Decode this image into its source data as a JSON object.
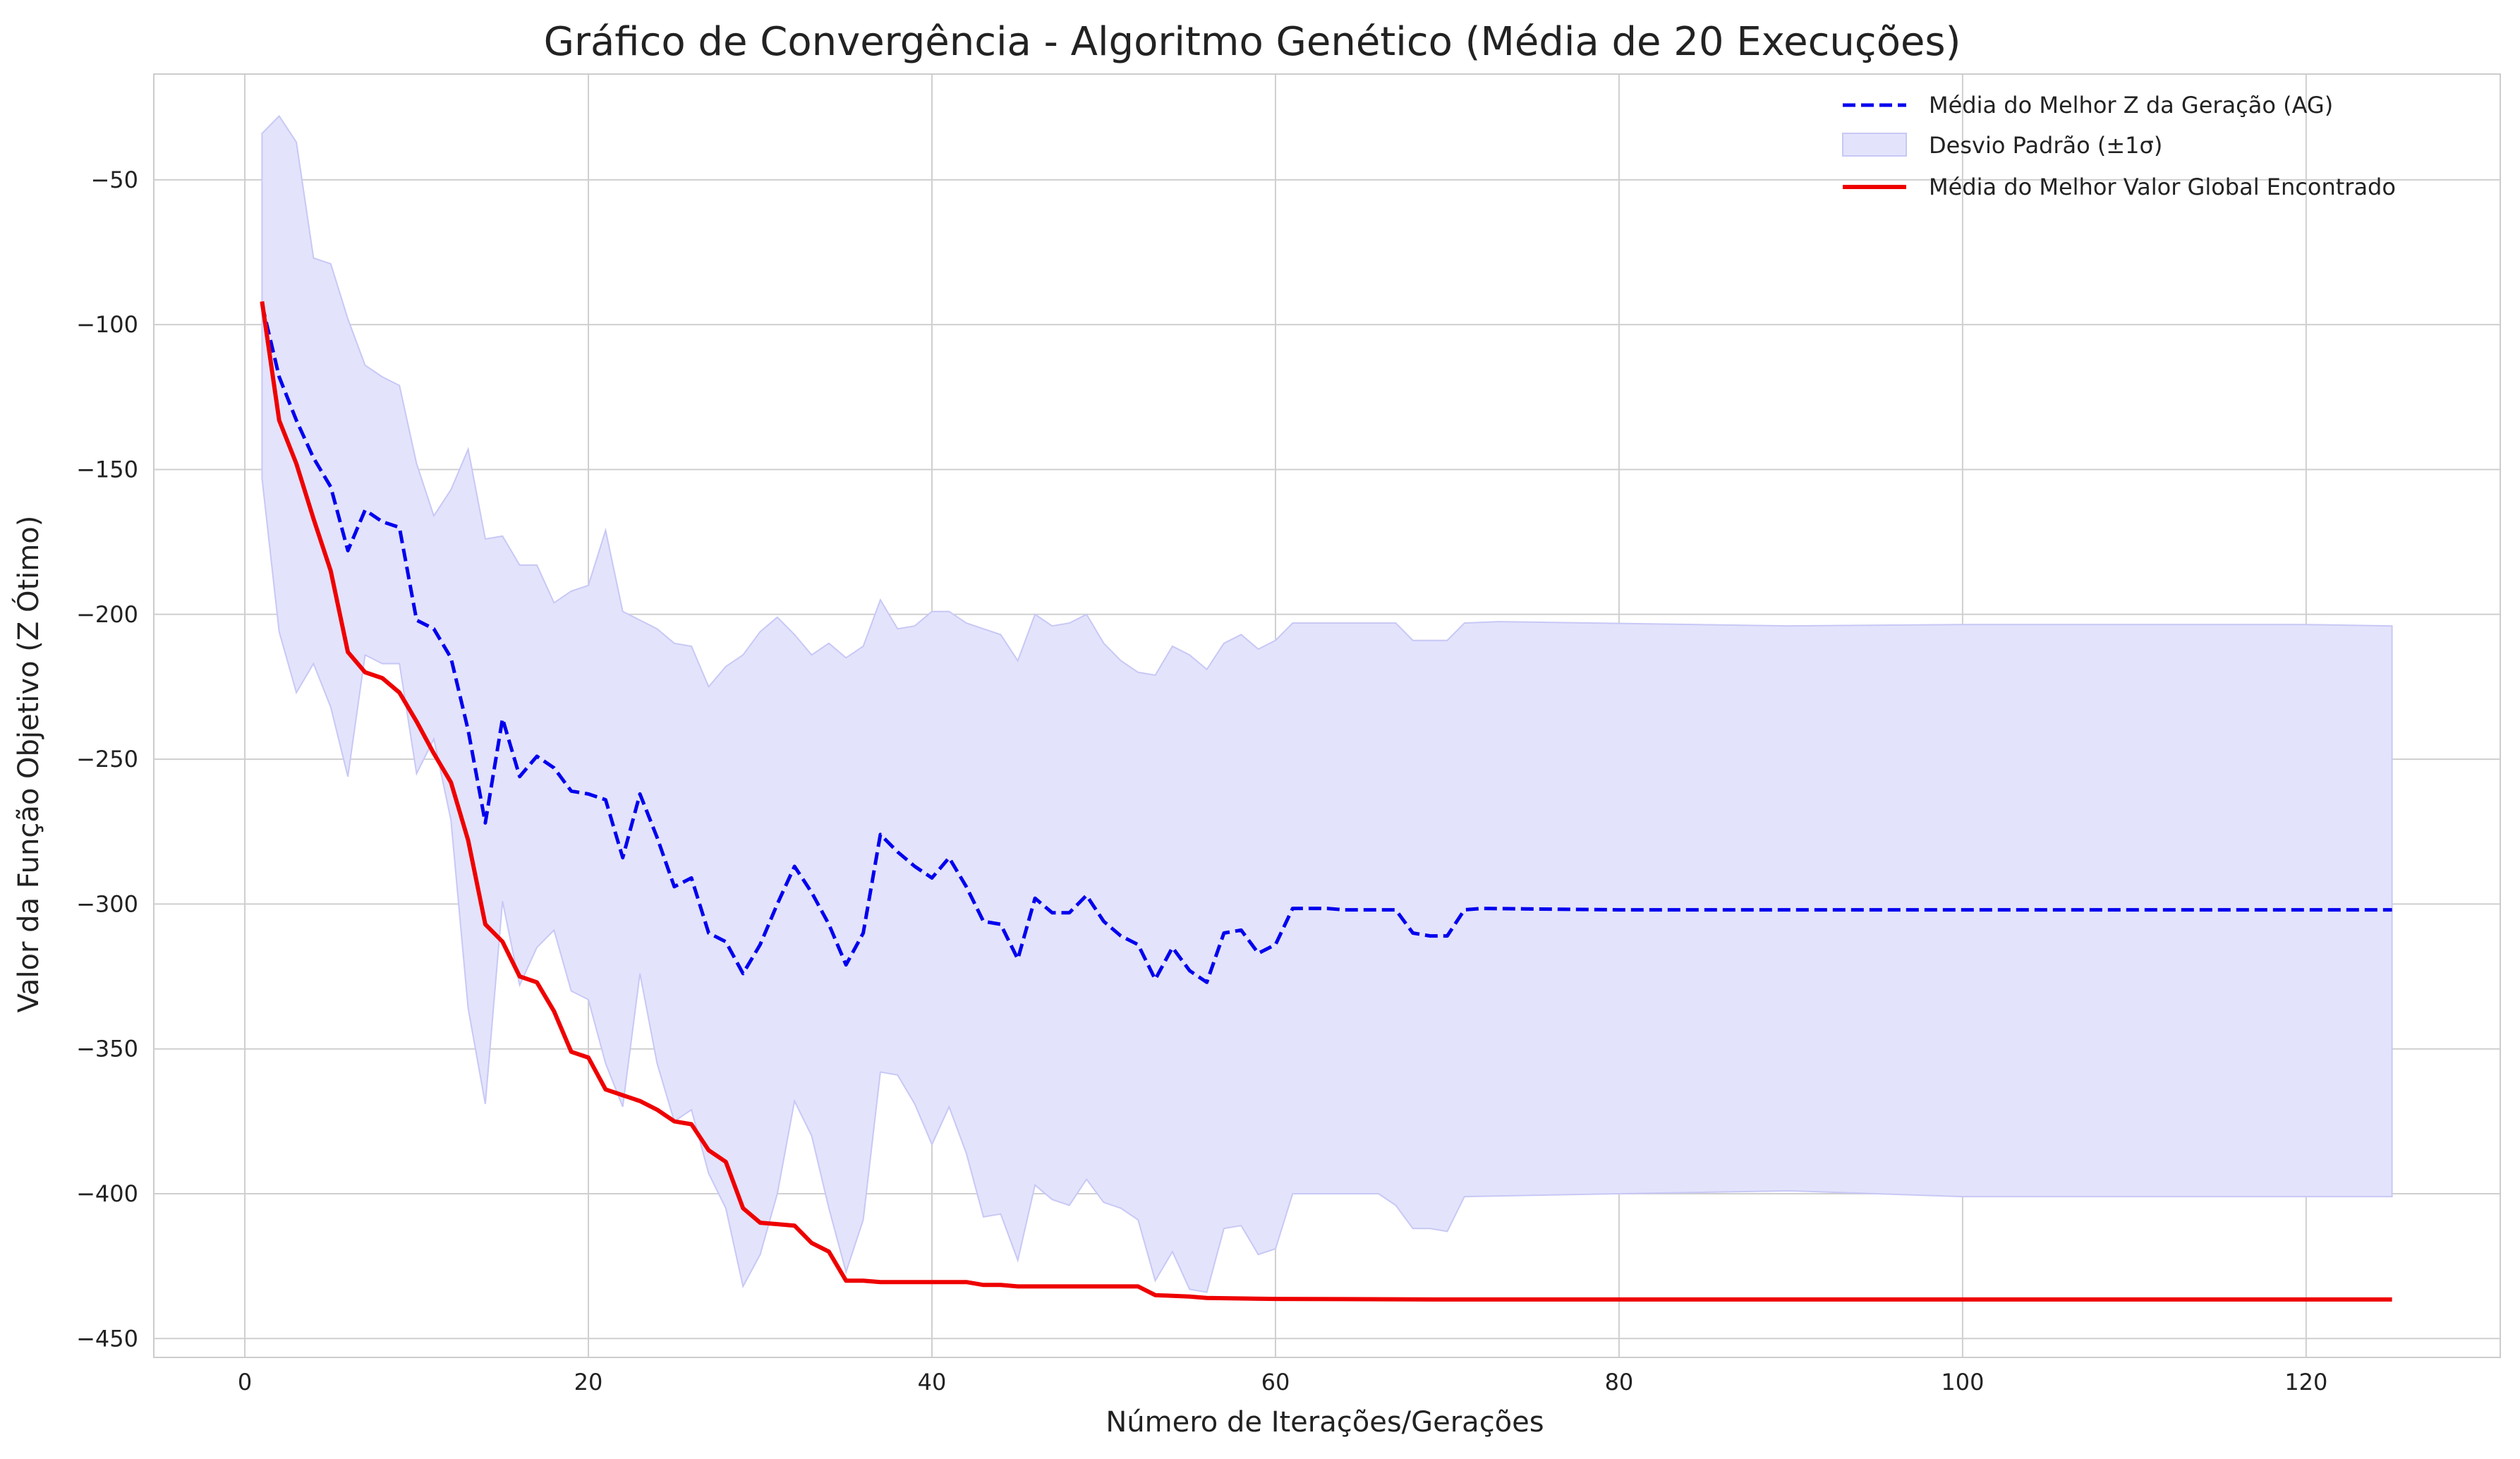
{
  "chart_data": {
    "type": "line",
    "title": "Gráfico de Convergência - Algoritmo Genético (Média de 20 Execuções)",
    "xlabel": "Número de Iterações/Gerações",
    "ylabel": "Valor da Função Objetivo (Z Ótimo)",
    "xlim": [
      -5.3,
      131.3
    ],
    "ylim": [
      -456.5,
      -13.5
    ],
    "xticks": [
      0,
      20,
      40,
      60,
      80,
      100,
      120
    ],
    "yticks": [
      -50,
      -100,
      -150,
      -200,
      -250,
      -300,
      -350,
      -400,
      -450
    ],
    "grid": true,
    "legend_position": "top-right",
    "colors": {
      "mean_best": "#0000ee",
      "band_fill": "#e3e3fc",
      "band_edge": "#c8c8f6",
      "global_best": "#ee0000",
      "grid": "#cfcfcf",
      "axes_edge": "#cccccc"
    },
    "series": [
      {
        "name": "Média do Melhor Z da Geração (AG)",
        "style": "dashed",
        "points": [
          [
            1,
            -93
          ],
          [
            2,
            -118
          ],
          [
            3,
            -133
          ],
          [
            4,
            -146
          ],
          [
            5,
            -156
          ],
          [
            6,
            -178
          ],
          [
            7,
            -164
          ],
          [
            8,
            -168
          ],
          [
            9,
            -170
          ],
          [
            10,
            -202
          ],
          [
            11,
            -205
          ],
          [
            12,
            -215
          ],
          [
            13,
            -240
          ],
          [
            14,
            -272
          ],
          [
            15,
            -236
          ],
          [
            16,
            -256
          ],
          [
            17,
            -249
          ],
          [
            18,
            -253
          ],
          [
            19,
            -261
          ],
          [
            20,
            -262
          ],
          [
            21,
            -264
          ],
          [
            22,
            -284
          ],
          [
            23,
            -262
          ],
          [
            24,
            -277
          ],
          [
            25,
            -294
          ],
          [
            26,
            -291
          ],
          [
            27,
            -310
          ],
          [
            28,
            -313
          ],
          [
            29,
            -324
          ],
          [
            30,
            -314
          ],
          [
            31,
            -300
          ],
          [
            32,
            -287
          ],
          [
            33,
            -296
          ],
          [
            34,
            -307
          ],
          [
            35,
            -321
          ],
          [
            36,
            -310
          ],
          [
            37,
            -276
          ],
          [
            38,
            -282
          ],
          [
            39,
            -287
          ],
          [
            40,
            -291
          ],
          [
            41,
            -284
          ],
          [
            42,
            -294
          ],
          [
            43,
            -306
          ],
          [
            44,
            -307
          ],
          [
            45,
            -319
          ],
          [
            46,
            -298
          ],
          [
            47,
            -303
          ],
          [
            48,
            -303
          ],
          [
            49,
            -297
          ],
          [
            50,
            -306
          ],
          [
            51,
            -311
          ],
          [
            52,
            -314
          ],
          [
            53,
            -326
          ],
          [
            54,
            -315
          ],
          [
            55,
            -323
          ],
          [
            56,
            -327
          ],
          [
            57,
            -310
          ],
          [
            58,
            -309
          ],
          [
            59,
            -317
          ],
          [
            60,
            -314
          ],
          [
            61,
            -301.5
          ],
          [
            62,
            -301.5
          ],
          [
            63,
            -301.5
          ],
          [
            64,
            -302
          ],
          [
            65,
            -302
          ],
          [
            66,
            -302
          ],
          [
            67,
            -302
          ],
          [
            68,
            -310
          ],
          [
            69,
            -311
          ],
          [
            70,
            -311
          ],
          [
            71,
            -302
          ],
          [
            72,
            -301.5
          ],
          [
            80,
            -302
          ],
          [
            90,
            -302
          ],
          [
            100,
            -302
          ],
          [
            110,
            -302
          ],
          [
            120,
            -302
          ],
          [
            125,
            -302
          ]
        ]
      },
      {
        "name": "Desvio Padrão (±1σ)",
        "style": "band",
        "upper": [
          [
            1,
            -34
          ],
          [
            2,
            -28
          ],
          [
            3,
            -37
          ],
          [
            4,
            -77
          ],
          [
            5,
            -79
          ],
          [
            6,
            -98
          ],
          [
            7,
            -114
          ],
          [
            8,
            -118
          ],
          [
            9,
            -121
          ],
          [
            10,
            -148
          ],
          [
            11,
            -166
          ],
          [
            12,
            -157
          ],
          [
            13,
            -143
          ],
          [
            14,
            -174
          ],
          [
            15,
            -173
          ],
          [
            16,
            -183
          ],
          [
            17,
            -183
          ],
          [
            18,
            -196
          ],
          [
            19,
            -192
          ],
          [
            20,
            -190
          ],
          [
            21,
            -171
          ],
          [
            22,
            -199
          ],
          [
            23,
            -202
          ],
          [
            24,
            -205
          ],
          [
            25,
            -210
          ],
          [
            26,
            -211
          ],
          [
            27,
            -225
          ],
          [
            28,
            -218
          ],
          [
            29,
            -214
          ],
          [
            30,
            -206
          ],
          [
            31,
            -201
          ],
          [
            32,
            -207
          ],
          [
            33,
            -214
          ],
          [
            34,
            -210
          ],
          [
            35,
            -215
          ],
          [
            36,
            -211
          ],
          [
            37,
            -195
          ],
          [
            38,
            -205
          ],
          [
            39,
            -204
          ],
          [
            40,
            -199
          ],
          [
            41,
            -199
          ],
          [
            42,
            -203
          ],
          [
            43,
            -205
          ],
          [
            44,
            -207
          ],
          [
            45,
            -216
          ],
          [
            46,
            -200
          ],
          [
            47,
            -204
          ],
          [
            48,
            -203
          ],
          [
            49,
            -200
          ],
          [
            50,
            -210
          ],
          [
            51,
            -216
          ],
          [
            52,
            -220
          ],
          [
            53,
            -221
          ],
          [
            54,
            -211
          ],
          [
            55,
            -214
          ],
          [
            56,
            -219
          ],
          [
            57,
            -210
          ],
          [
            58,
            -207
          ],
          [
            59,
            -212
          ],
          [
            60,
            -209
          ],
          [
            61,
            -203
          ],
          [
            65,
            -203
          ],
          [
            67,
            -203
          ],
          [
            68,
            -209
          ],
          [
            70,
            -209
          ],
          [
            71,
            -203
          ],
          [
            73,
            -202.5
          ],
          [
            90,
            -204
          ],
          [
            100,
            -203.5
          ],
          [
            110,
            -203.5
          ],
          [
            120,
            -203.5
          ],
          [
            125,
            -204
          ]
        ],
        "lower": [
          [
            1,
            -153
          ],
          [
            2,
            -206
          ],
          [
            3,
            -227
          ],
          [
            4,
            -217
          ],
          [
            5,
            -232
          ],
          [
            6,
            -256
          ],
          [
            7,
            -214
          ],
          [
            8,
            -217
          ],
          [
            9,
            -217
          ],
          [
            10,
            -255
          ],
          [
            11,
            -243
          ],
          [
            12,
            -271
          ],
          [
            13,
            -336
          ],
          [
            14,
            -369
          ],
          [
            15,
            -299
          ],
          [
            16,
            -328
          ],
          [
            17,
            -315
          ],
          [
            18,
            -309
          ],
          [
            19,
            -330
          ],
          [
            20,
            -333
          ],
          [
            21,
            -355
          ],
          [
            22,
            -370
          ],
          [
            23,
            -324
          ],
          [
            24,
            -355
          ],
          [
            25,
            -375
          ],
          [
            26,
            -371
          ],
          [
            27,
            -393
          ],
          [
            28,
            -405
          ],
          [
            29,
            -432
          ],
          [
            30,
            -421
          ],
          [
            31,
            -400
          ],
          [
            32,
            -368
          ],
          [
            33,
            -380
          ],
          [
            34,
            -405
          ],
          [
            35,
            -427
          ],
          [
            36,
            -409
          ],
          [
            37,
            -358
          ],
          [
            38,
            -359
          ],
          [
            39,
            -369
          ],
          [
            40,
            -383
          ],
          [
            41,
            -370
          ],
          [
            42,
            -386
          ],
          [
            43,
            -408
          ],
          [
            44,
            -407
          ],
          [
            45,
            -423
          ],
          [
            46,
            -397
          ],
          [
            47,
            -402
          ],
          [
            48,
            -404
          ],
          [
            49,
            -395
          ],
          [
            50,
            -403
          ],
          [
            51,
            -405
          ],
          [
            52,
            -409
          ],
          [
            53,
            -430
          ],
          [
            54,
            -420
          ],
          [
            55,
            -433
          ],
          [
            56,
            -434
          ],
          [
            57,
            -412
          ],
          [
            58,
            -411
          ],
          [
            59,
            -421
          ],
          [
            60,
            -419
          ],
          [
            61,
            -400
          ],
          [
            65,
            -400
          ],
          [
            66,
            -400
          ],
          [
            67,
            -404
          ],
          [
            68,
            -412
          ],
          [
            69,
            -412
          ],
          [
            70,
            -413
          ],
          [
            71,
            -401
          ],
          [
            80,
            -400
          ],
          [
            90,
            -399
          ],
          [
            100,
            -401
          ],
          [
            110,
            -401
          ],
          [
            120,
            -401
          ],
          [
            125,
            -401
          ]
        ]
      },
      {
        "name": "Média do Melhor Valor Global Encontrado",
        "style": "solid",
        "points": [
          [
            1,
            -92
          ],
          [
            2,
            -133
          ],
          [
            3,
            -148
          ],
          [
            4,
            -167
          ],
          [
            5,
            -185
          ],
          [
            6,
            -213
          ],
          [
            7,
            -220
          ],
          [
            8,
            -222
          ],
          [
            9,
            -227
          ],
          [
            10,
            -237
          ],
          [
            11,
            -248
          ],
          [
            12,
            -258
          ],
          [
            13,
            -278
          ],
          [
            14,
            -307
          ],
          [
            15,
            -313
          ],
          [
            16,
            -325
          ],
          [
            17,
            -327
          ],
          [
            18,
            -337
          ],
          [
            19,
            -351
          ],
          [
            20,
            -353
          ],
          [
            21,
            -364
          ],
          [
            22,
            -366
          ],
          [
            23,
            -368
          ],
          [
            24,
            -371
          ],
          [
            25,
            -375
          ],
          [
            26,
            -376
          ],
          [
            27,
            -385
          ],
          [
            28,
            -389
          ],
          [
            29,
            -405
          ],
          [
            30,
            -410
          ],
          [
            31,
            -410.5
          ],
          [
            32,
            -411
          ],
          [
            33,
            -417
          ],
          [
            34,
            -420
          ],
          [
            35,
            -430
          ],
          [
            36,
            -430
          ],
          [
            37,
            -430.5
          ],
          [
            38,
            -430.5
          ],
          [
            40,
            -430.5
          ],
          [
            42,
            -430.5
          ],
          [
            43,
            -431.5
          ],
          [
            44,
            -431.5
          ],
          [
            45,
            -432
          ],
          [
            50,
            -432
          ],
          [
            52,
            -432
          ],
          [
            53,
            -435
          ],
          [
            55,
            -435.5
          ],
          [
            56,
            -436
          ],
          [
            60,
            -436.3
          ],
          [
            70,
            -436.5
          ],
          [
            80,
            -436.5
          ],
          [
            100,
            -436.5
          ],
          [
            125,
            -436.5
          ]
        ]
      }
    ]
  }
}
